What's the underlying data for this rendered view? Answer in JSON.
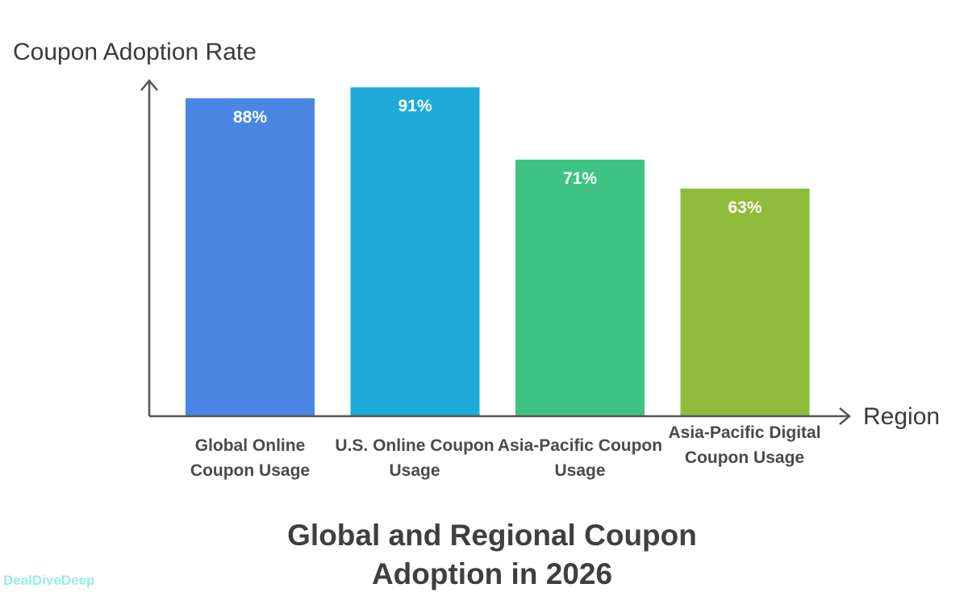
{
  "chart_data": {
    "type": "bar",
    "title": "Global and Regional Coupon Adoption in 2026",
    "xlabel": "Region",
    "ylabel": "Coupon Adoption Rate",
    "categories": [
      "Global Online Coupon Usage",
      "U.S. Online Coupon Usage",
      "Asia-Pacific Coupon Usage",
      "Asia-Pacific Digital Coupon Usage"
    ],
    "values": [
      88,
      91,
      71,
      63
    ],
    "data_labels": [
      "88%",
      "91%",
      "71%",
      "63%"
    ],
    "colors": [
      "#4a86e4",
      "#1eaad9",
      "#3dc483",
      "#8fbb3b"
    ],
    "ylim": [
      0,
      100
    ],
    "grid": false,
    "legend": "none"
  },
  "watermark": "DealDiveDeep"
}
